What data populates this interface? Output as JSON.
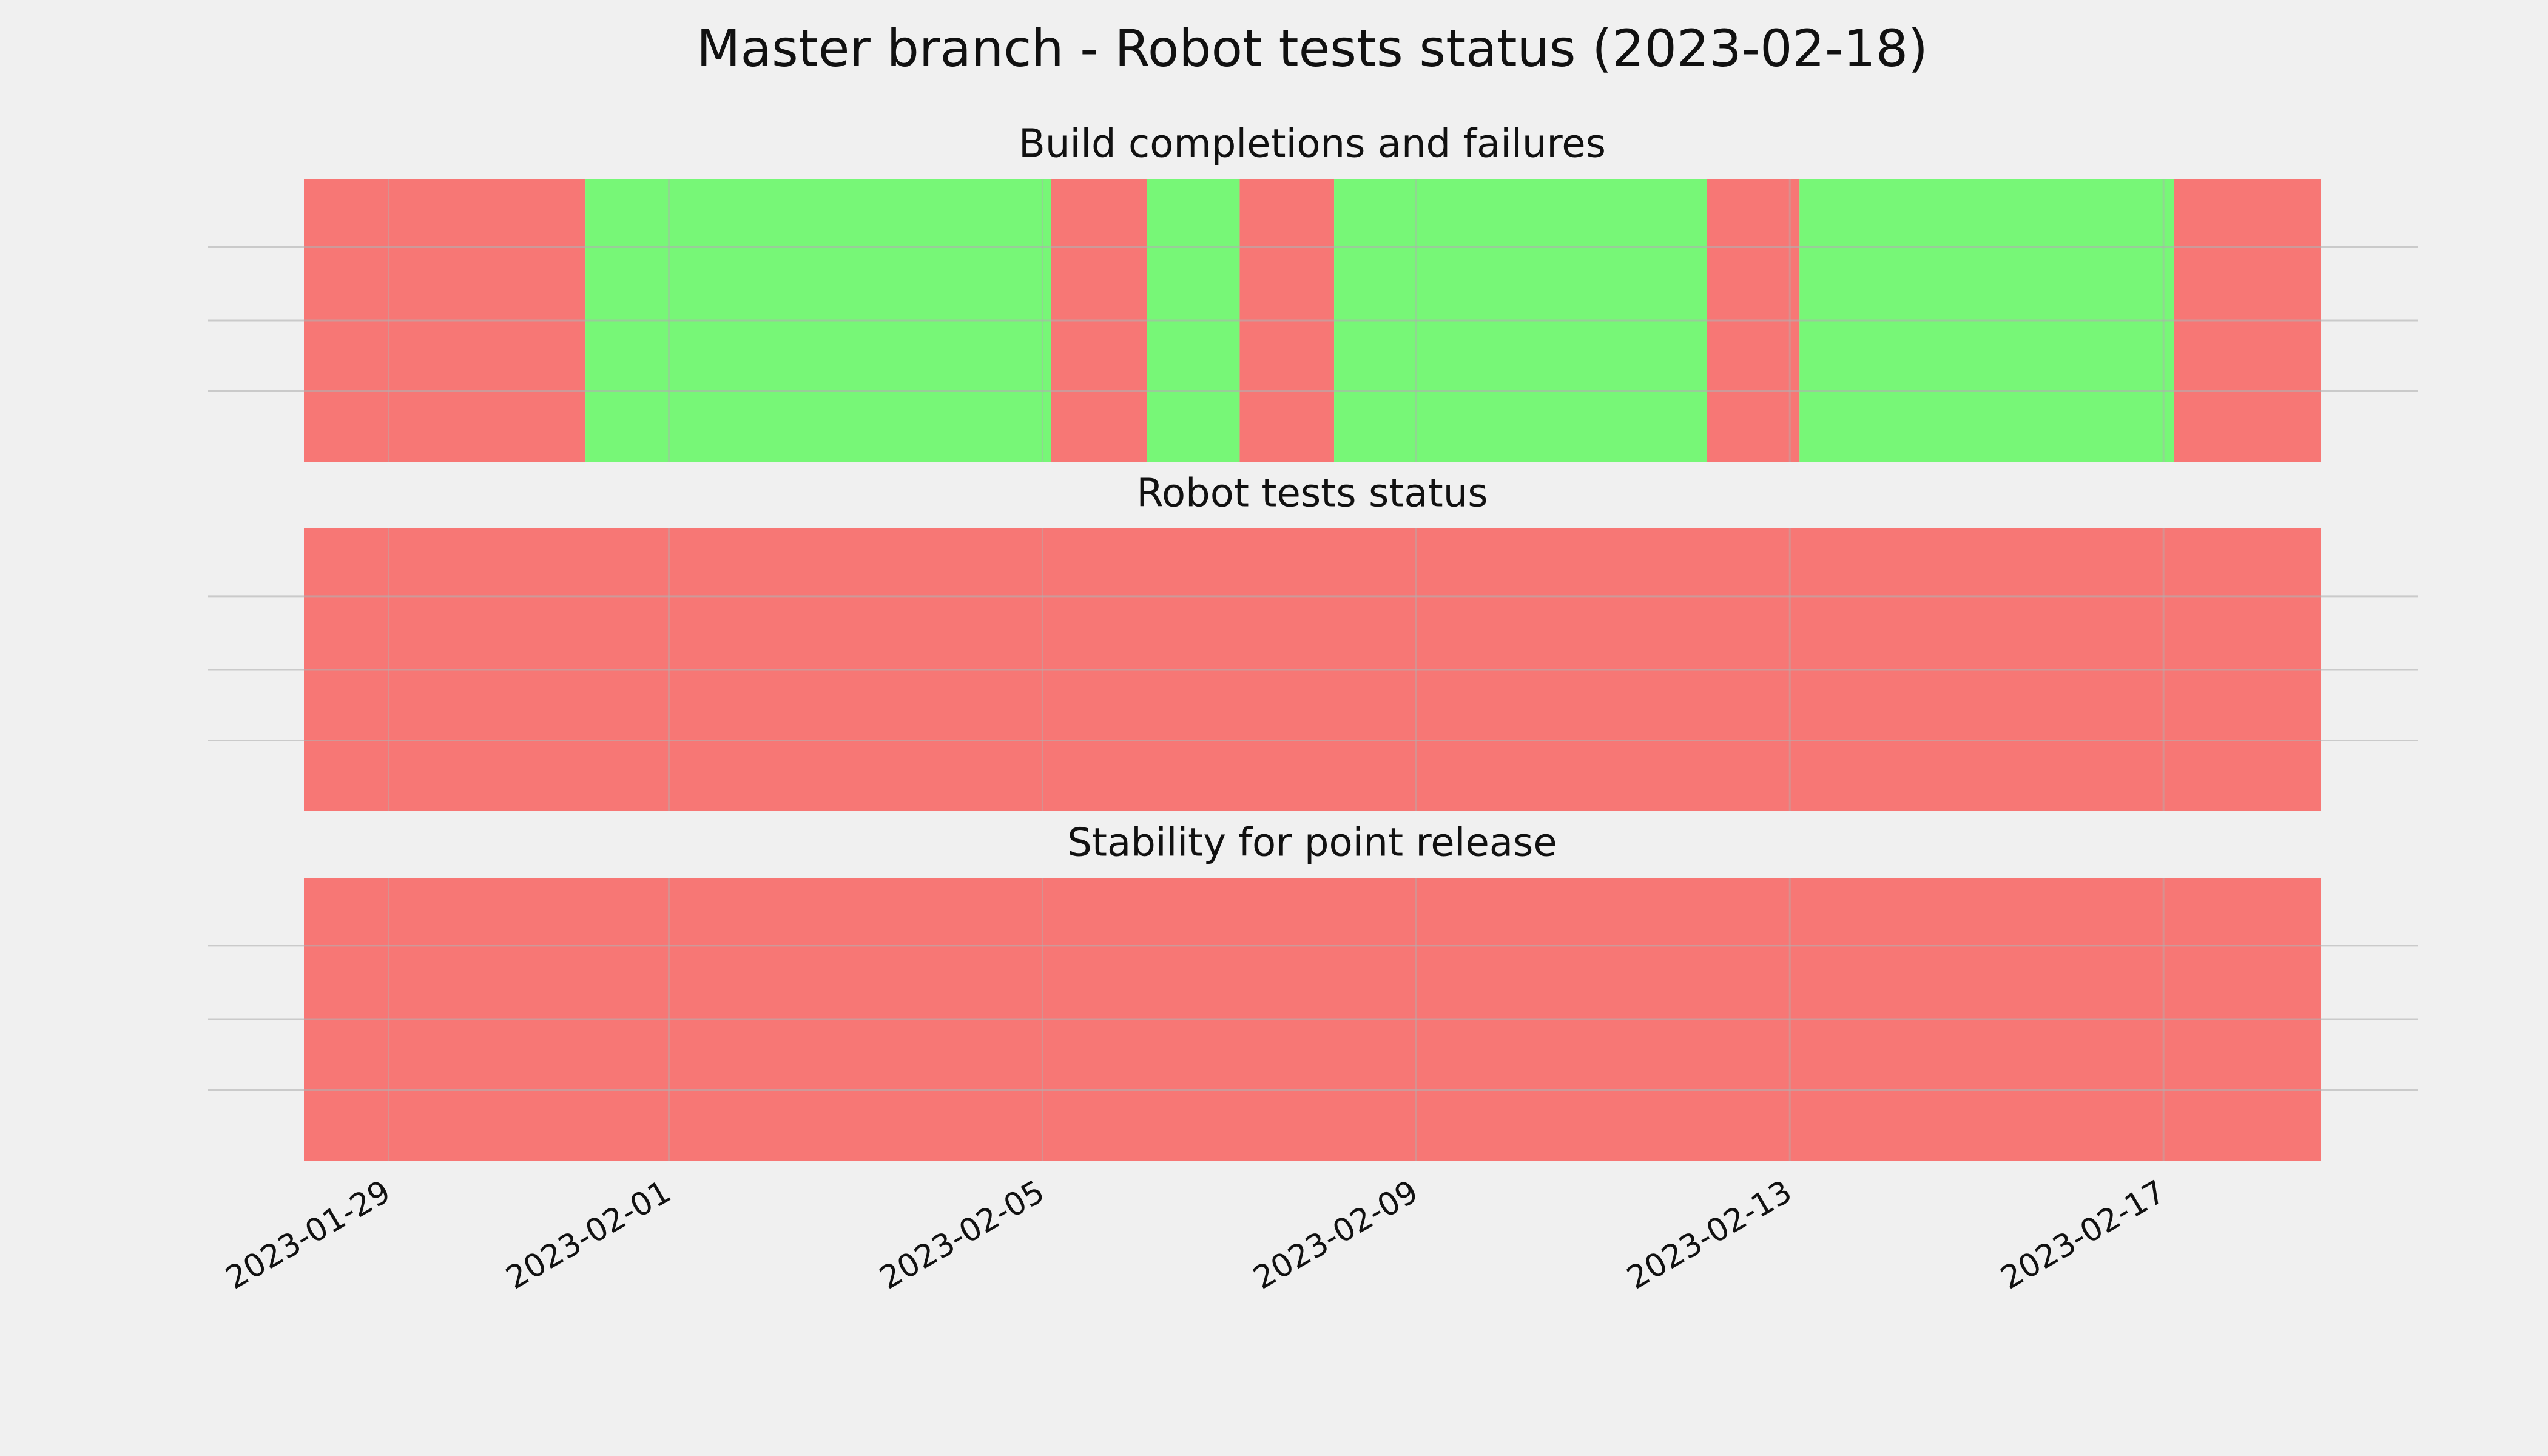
{
  "chart_data": {
    "type": "timeline",
    "title": "Master branch - Robot tests status (2023-02-18)",
    "xlim": [
      "2023-01-28 02:15",
      "2023-02-18 16:30"
    ],
    "xticks": [
      "2023-01-29",
      "2023-02-01",
      "2023-02-05",
      "2023-02-09",
      "2023-02-13",
      "2023-02-17"
    ],
    "grid": true,
    "panels": [
      {
        "title": "Build completions and failures",
        "segments": [
          {
            "start": "2023-01-28 02:15",
            "end": "2023-01-31 02:35",
            "color": "#f77775"
          },
          {
            "start": "2023-01-31 02:35",
            "end": "2023-02-05 02:10",
            "color": "#77f777"
          },
          {
            "start": "2023-02-05 02:10",
            "end": "2023-02-06 02:50",
            "color": "#f77775"
          },
          {
            "start": "2023-02-06 02:50",
            "end": "2023-02-07 02:40",
            "color": "#77f777"
          },
          {
            "start": "2023-02-07 02:40",
            "end": "2023-02-08 02:55",
            "color": "#f77775"
          },
          {
            "start": "2023-02-08 02:55",
            "end": "2023-02-12 02:40",
            "color": "#77f777"
          },
          {
            "start": "2023-02-12 02:40",
            "end": "2023-02-13 02:30",
            "color": "#f77775"
          },
          {
            "start": "2023-02-13 02:30",
            "end": "2023-02-17 02:40",
            "color": "#77f777"
          },
          {
            "start": "2023-02-17 02:40",
            "end": "2023-02-18 16:30",
            "color": "#f77775"
          }
        ]
      },
      {
        "title": "Robot tests status",
        "segments": [
          {
            "start": "2023-01-28 02:15",
            "end": "2023-02-18 16:30",
            "color": "#f77775"
          }
        ]
      },
      {
        "title": "Stability for point release",
        "segments": [
          {
            "start": "2023-01-28 02:15",
            "end": "2023-02-18 16:30",
            "color": "#f77775"
          }
        ]
      }
    ]
  }
}
